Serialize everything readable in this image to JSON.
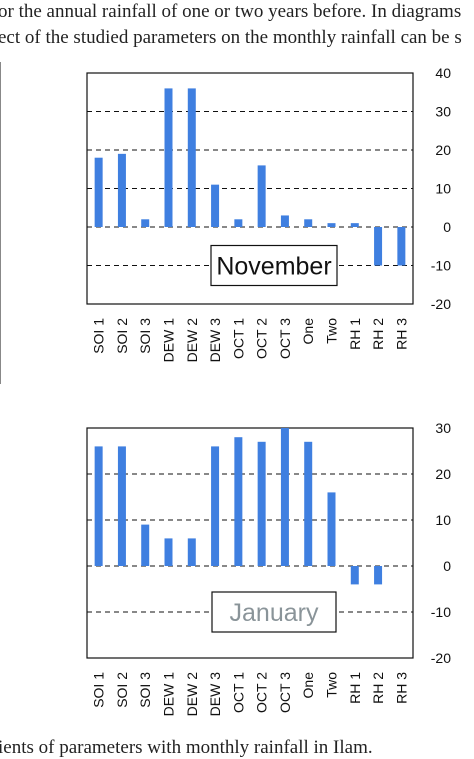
{
  "page": {
    "top_line_1": "or the annual rainfall of one or two years before. In diagrams",
    "top_line_2": "ect of the studied parameters on the monthly rainfall can be s",
    "caption": "ients of parameters with monthly rainfall in Ilam."
  },
  "colors": {
    "bar": "#3f7fe0",
    "grid": "#111111",
    "label_nov_text": "#111111",
    "label_jan_text": "#8a9499"
  },
  "chart_data": [
    {
      "type": "bar",
      "title": "November",
      "categories": [
        "SOI 1",
        "SOI 2",
        "SOI 3",
        "DEW 1",
        "DEW 2",
        "DEW 3",
        "OCT 1",
        "OCT 2",
        "OCT 3",
        "One",
        "Two",
        "RH 1",
        "RH 2",
        "RH 3"
      ],
      "values": [
        18,
        19,
        2,
        36,
        36,
        11,
        2,
        16,
        3,
        2,
        1,
        1,
        -10,
        -10
      ],
      "ylim": [
        -20,
        40
      ],
      "yticks": [
        -20,
        -10,
        0,
        10,
        20,
        30,
        40
      ],
      "grid": "horizontal dashed",
      "label_placement": "inside bottom-center"
    },
    {
      "type": "bar",
      "title": "January",
      "categories": [
        "SOI 1",
        "SOI 2",
        "SOI 3",
        "DEW 1",
        "DEW 2",
        "DEW 3",
        "OCT 1",
        "OCT 2",
        "OCT 3",
        "One",
        "Two",
        "RH 1",
        "RH 2",
        "RH 3"
      ],
      "values": [
        26,
        26,
        9,
        6,
        6,
        26,
        28,
        27,
        30,
        27,
        16,
        -4,
        -4,
        0
      ],
      "ylim": [
        -20,
        30
      ],
      "yticks": [
        -20,
        -10,
        0,
        10,
        20,
        30
      ],
      "grid": "horizontal dashed",
      "label_placement": "inside bottom-center"
    }
  ]
}
